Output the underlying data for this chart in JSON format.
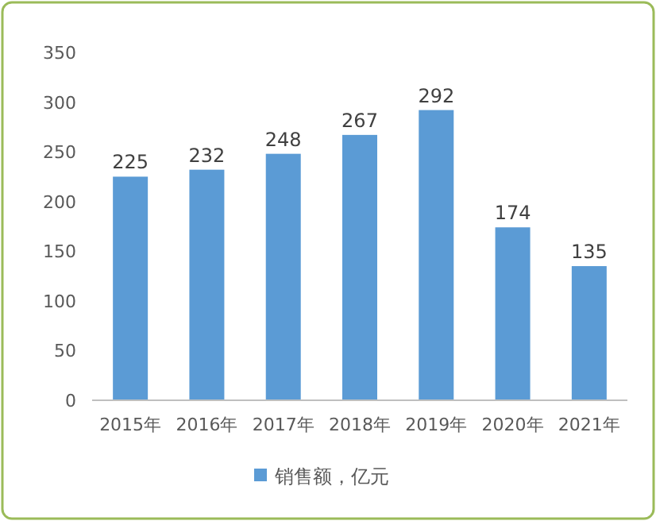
{
  "chart_data": {
    "type": "bar",
    "categories": [
      "2015年",
      "2016年",
      "2017年",
      "2018年",
      "2019年",
      "2020年",
      "2021年"
    ],
    "series": [
      {
        "name": "销售额，亿元",
        "color": "#5b9bd5",
        "values": [
          225,
          232,
          248,
          267,
          292,
          174,
          135
        ]
      }
    ],
    "ylim": [
      0,
      350
    ],
    "yticks": [
      0,
      50,
      100,
      150,
      200,
      250,
      300,
      350
    ],
    "data_labels": true,
    "legend": "bottom"
  }
}
